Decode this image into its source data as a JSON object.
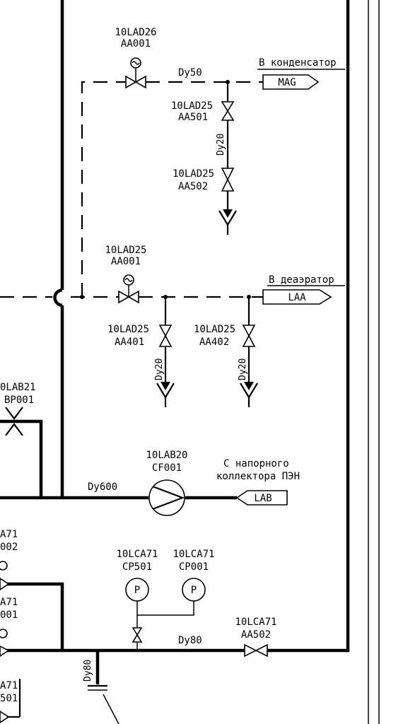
{
  "labels": {
    "v_lad26": [
      "10LAD26",
      "AA001"
    ],
    "dn_top": "Dy50",
    "dest_condenser": "В конденсатор",
    "tag_mag": "MAG",
    "v_lad25_501": [
      "10LAD25",
      "AA501"
    ],
    "dn_vert_1": "Dy20",
    "v_lad25_502": [
      "10LAD25",
      "AA502"
    ],
    "v_lad25_001": [
      "10LAD25",
      "AA001"
    ],
    "dest_deaerator": "В деаэратор",
    "tag_laa": "LAA",
    "v_lad25_401": [
      "10LAD25",
      "AA401"
    ],
    "v_lad25_402": [
      "10LAD25",
      "AA402"
    ],
    "dn_vert_2": "Dy20",
    "dn_vert_3": "Dy20",
    "lab21": [
      "0LAB21",
      "BP001"
    ],
    "pump": [
      "10LAB20",
      "CF001"
    ],
    "dn_main": "Dy600",
    "src_pen": [
      "С напорного",
      "коллектора ПЭН"
    ],
    "tag_lab": "LAB",
    "left_cut": [
      "A71",
      "002",
      "A71",
      "001",
      "A71",
      "501"
    ],
    "gauge_cp501": [
      "10LCA71",
      "CP501"
    ],
    "gauge_cp001": [
      "10LCA71",
      "CP001"
    ],
    "gauge_letter": "P",
    "dn_bottom": "Dy80",
    "v_lca71_502": [
      "10LCA71",
      "AA502"
    ],
    "dn_drop": "Dy80"
  }
}
